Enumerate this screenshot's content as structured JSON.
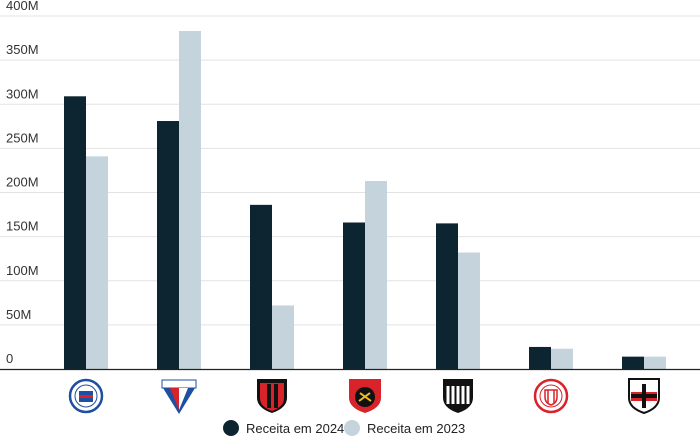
{
  "chart_data": {
    "type": "bar",
    "categories": [
      "Bahia",
      "Fortaleza",
      "Vitória",
      "Sport",
      "Ceará",
      "Náutico",
      "Santa Cruz"
    ],
    "series": [
      {
        "name": "Receita em 2024",
        "color": "#0d2530",
        "values": [
          309,
          281,
          186,
          166,
          165,
          25,
          14
        ]
      },
      {
        "name": "Receita em 2023",
        "color": "#c5d4dc",
        "values": [
          241,
          383,
          72,
          213,
          132,
          23,
          14
        ]
      }
    ],
    "ylim": [
      0,
      400
    ],
    "yticks": [
      {
        "value": 0,
        "label": "0"
      },
      {
        "value": 50,
        "label": "50M"
      },
      {
        "value": 100,
        "label": "100M"
      },
      {
        "value": 150,
        "label": "150M"
      },
      {
        "value": 200,
        "label": "200M"
      },
      {
        "value": 250,
        "label": "250M"
      },
      {
        "value": 300,
        "label": "300M"
      },
      {
        "value": 350,
        "label": "350M"
      },
      {
        "value": 400,
        "label": "400M"
      }
    ],
    "grid": true,
    "legend_position": "bottom-center",
    "title": "",
    "xlabel": "",
    "ylabel": ""
  },
  "crests": {
    "Bahia": {
      "icon": "bahia-crest-icon",
      "shape": "circle",
      "primary": "#1f4fa0",
      "secondary": "#d8232a"
    },
    "Fortaleza": {
      "icon": "fortaleza-crest-icon",
      "shape": "shield",
      "primary": "#d8232a",
      "secondary": "#1f4fa0",
      "text": "FORTALEZA"
    },
    "Vitória": {
      "icon": "vitoria-crest-icon",
      "shape": "shield",
      "primary": "#d8232a",
      "secondary": "#111111"
    },
    "Sport": {
      "icon": "sport-crest-icon",
      "shape": "shield",
      "primary": "#d8232a",
      "secondary": "#111111"
    },
    "Ceará": {
      "icon": "ceara-crest-icon",
      "shape": "shield",
      "primary": "#111111",
      "secondary": "#ffffff"
    },
    "Náutico": {
      "icon": "nautico-crest-icon",
      "shape": "circle",
      "primary": "#d8232a",
      "secondary": "#ffffff"
    },
    "Santa Cruz": {
      "icon": "santa-cruz-crest-icon",
      "shape": "shield",
      "primary": "#111111",
      "secondary": "#d8232a"
    }
  }
}
